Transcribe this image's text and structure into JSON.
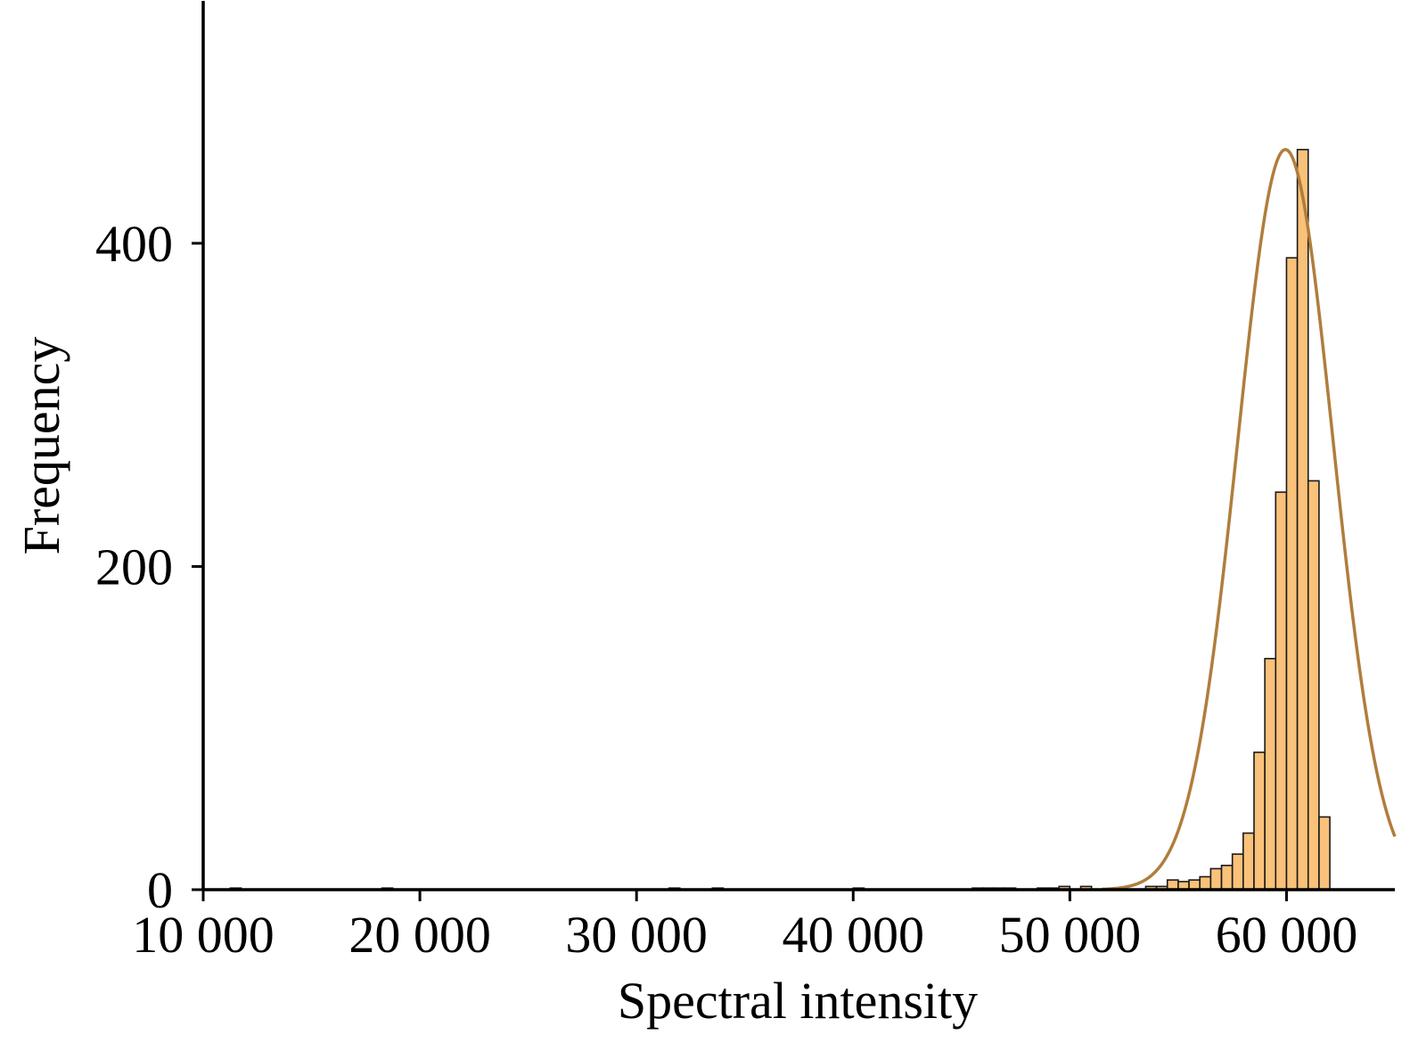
{
  "chart_data": {
    "type": "bar",
    "subtype": "histogram-with-normal-fit",
    "xlabel": "Spectral intensity",
    "ylabel": "Frequency",
    "xlim": [
      10000,
      65000
    ],
    "ylim": [
      0,
      550
    ],
    "x_ticks": [
      10000,
      20000,
      30000,
      40000,
      50000,
      60000
    ],
    "x_tick_labels": [
      "10 000",
      "20 000",
      "30 000",
      "40 000",
      "50 000",
      "60 000"
    ],
    "y_ticks": [
      0,
      200,
      400
    ],
    "y_tick_labels": [
      "0",
      "200",
      "400"
    ],
    "bin_width": 500,
    "bins": [
      {
        "x": 11500,
        "count": 1
      },
      {
        "x": 18500,
        "count": 1
      },
      {
        "x": 31750,
        "count": 1
      },
      {
        "x": 33750,
        "count": 1
      },
      {
        "x": 40250,
        "count": 1
      },
      {
        "x": 45750,
        "count": 1
      },
      {
        "x": 46250,
        "count": 1
      },
      {
        "x": 46750,
        "count": 1
      },
      {
        "x": 47250,
        "count": 1
      },
      {
        "x": 48750,
        "count": 1
      },
      {
        "x": 49250,
        "count": 1
      },
      {
        "x": 49750,
        "count": 2
      },
      {
        "x": 50750,
        "count": 2
      },
      {
        "x": 52250,
        "count": 1
      },
      {
        "x": 53750,
        "count": 2
      },
      {
        "x": 54250,
        "count": 2
      },
      {
        "x": 54750,
        "count": 6
      },
      {
        "x": 55250,
        "count": 5
      },
      {
        "x": 55750,
        "count": 6
      },
      {
        "x": 56250,
        "count": 8
      },
      {
        "x": 56750,
        "count": 13
      },
      {
        "x": 57250,
        "count": 15
      },
      {
        "x": 57750,
        "count": 22
      },
      {
        "x": 58250,
        "count": 35
      },
      {
        "x": 58750,
        "count": 85
      },
      {
        "x": 59250,
        "count": 143
      },
      {
        "x": 59750,
        "count": 246
      },
      {
        "x": 60250,
        "count": 391
      },
      {
        "x": 60750,
        "count": 458
      },
      {
        "x": 61250,
        "count": 253
      },
      {
        "x": 61750,
        "count": 45
      }
    ],
    "fit_curve": {
      "type": "normal",
      "mean": 59950,
      "sd": 2200,
      "peak": 458
    },
    "colors": {
      "bar_fill": "#F9C179",
      "bar_edge": "#1a1a1a",
      "curve": "#B07D3C",
      "axis": "#000000"
    },
    "grid": false,
    "legend": "none"
  }
}
